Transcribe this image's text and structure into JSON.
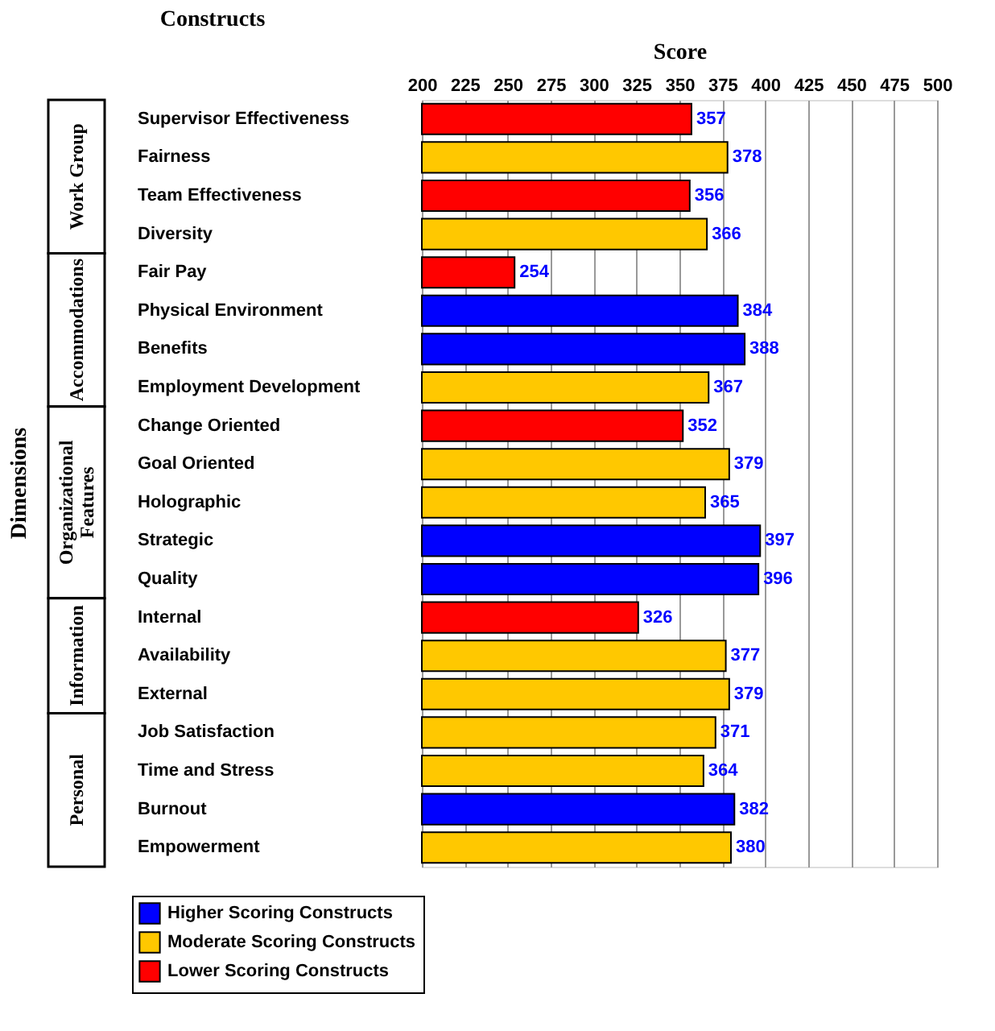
{
  "chart_data": {
    "type": "bar",
    "orientation": "horizontal",
    "xlabel": "Score",
    "ylabel": "Dimensions",
    "categories": [
      "Supervisor Effectiveness",
      "Fairness",
      "Team Effectiveness",
      "Diversity",
      "Fair Pay",
      "Physical Environment",
      "Benefits",
      "Employment Development",
      "Change Oriented",
      "Goal Oriented",
      "Holographic",
      "Strategic",
      "Quality",
      "Internal",
      "Availability",
      "External",
      "Job Satisfaction",
      "Time and Stress",
      "Burnout",
      "Empowerment"
    ],
    "series": [
      {
        "name": "Higher Scoring Constructs",
        "color": "#0000ff",
        "values": [
          null,
          null,
          null,
          null,
          null,
          384,
          388,
          null,
          null,
          null,
          null,
          397,
          396,
          null,
          null,
          null,
          null,
          null,
          382,
          null
        ]
      },
      {
        "name": "Moderate Scoring Constructs",
        "color": "#ffc800",
        "values": [
          null,
          378,
          null,
          366,
          null,
          null,
          null,
          367,
          null,
          379,
          365,
          null,
          null,
          null,
          377,
          379,
          371,
          364,
          null,
          380
        ]
      },
      {
        "name": "Lower Scoring Constructs",
        "color": "#ff0000",
        "values": [
          357,
          null,
          356,
          null,
          254,
          null,
          null,
          null,
          352,
          null,
          null,
          null,
          null,
          326,
          null,
          null,
          null,
          null,
          null,
          null
        ]
      }
    ],
    "xlim": [
      200,
      500
    ],
    "xticks": [
      200,
      225,
      250,
      275,
      300,
      325,
      350,
      375,
      400,
      425,
      450,
      475,
      500
    ],
    "grid": "x",
    "data_labels": true,
    "legend": "bottom",
    "annotations": [
      "Constructs",
      "Work Group",
      "Accommodations",
      "Organizational Features",
      "Information",
      "Personal"
    ]
  }
}
